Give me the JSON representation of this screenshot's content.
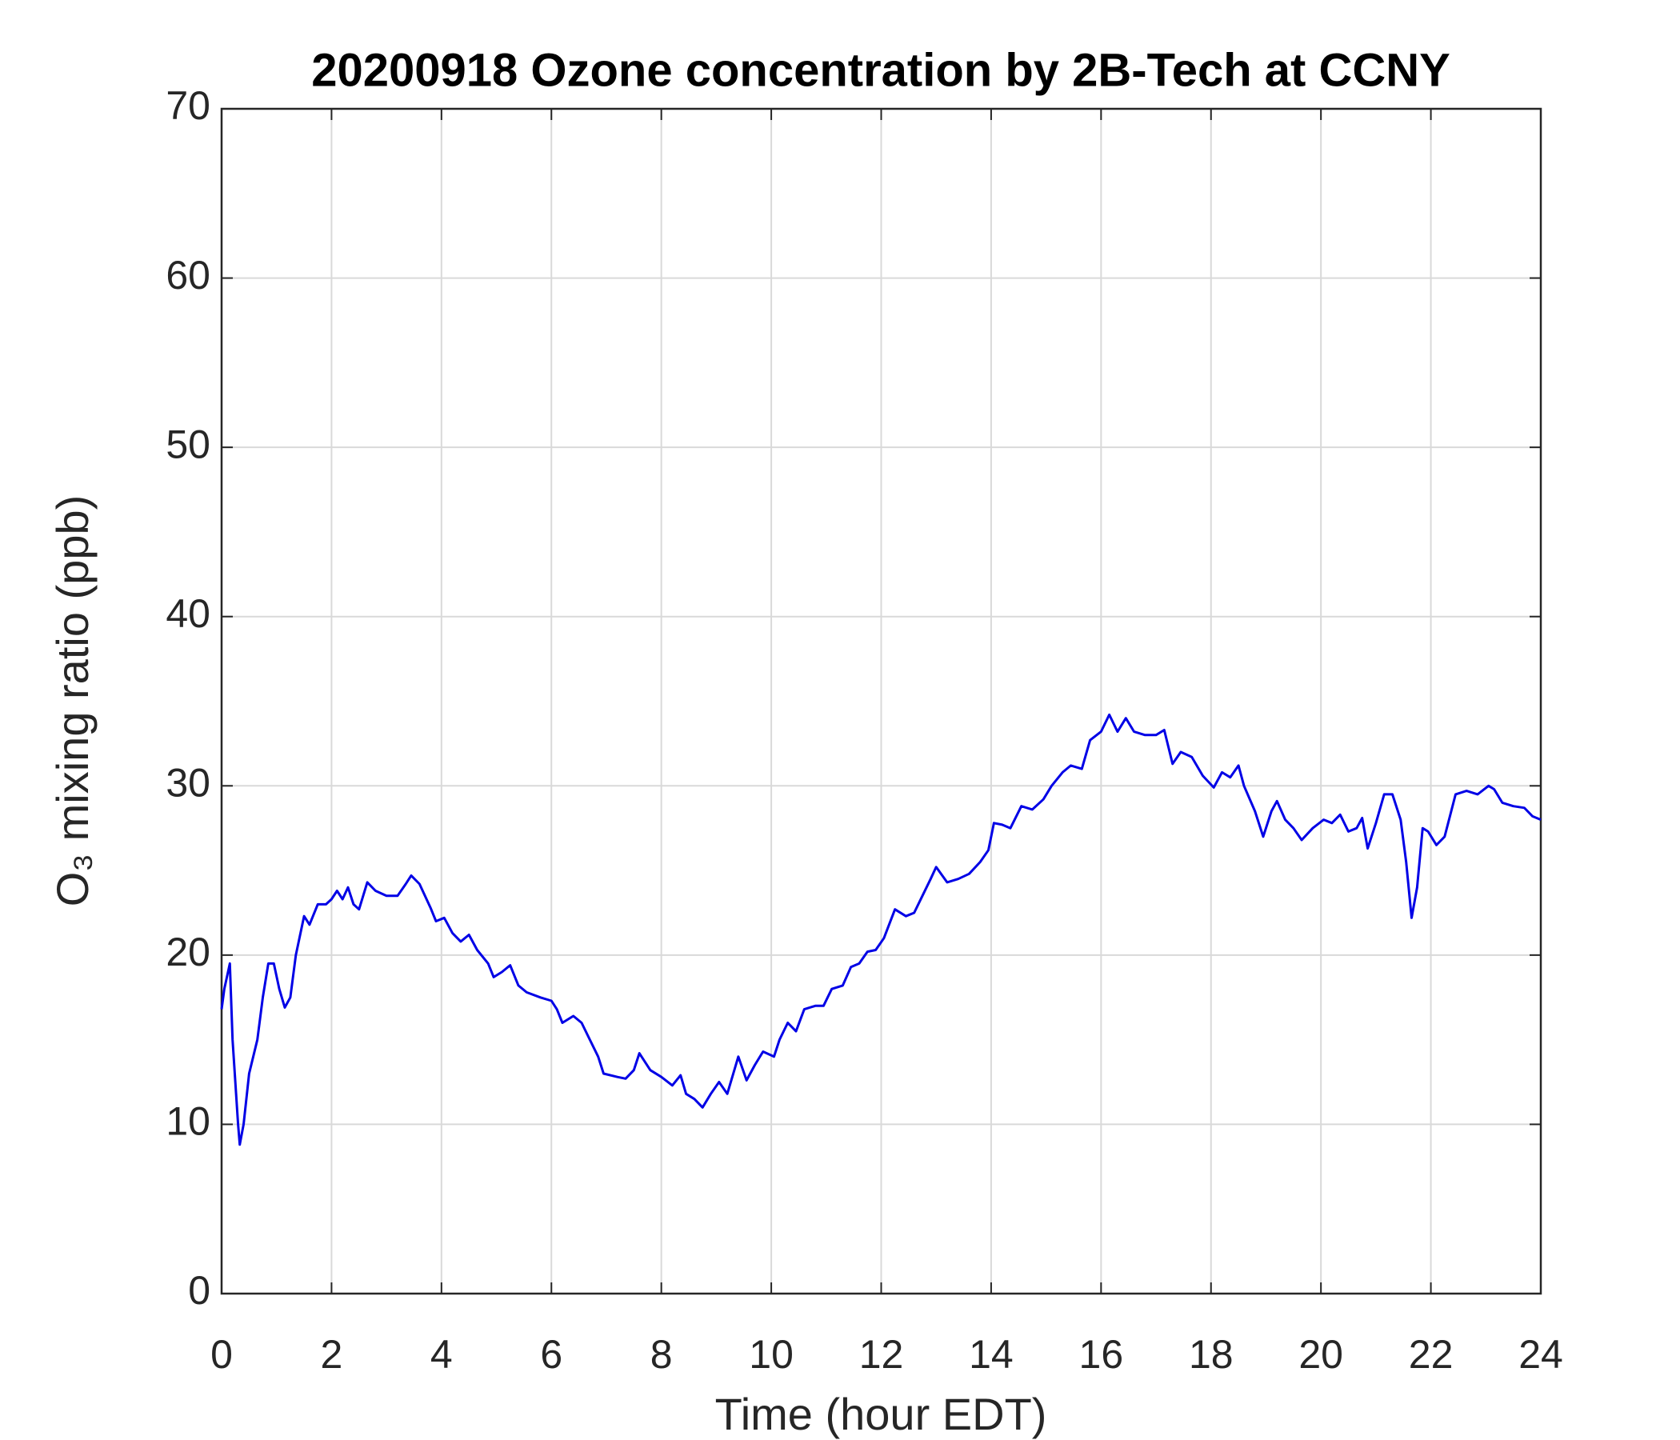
{
  "chart_data": {
    "type": "line",
    "title": "20200918 Ozone concentration by 2B-Tech at CCNY",
    "xlabel": "Time (hour EDT)",
    "ylabel": "O₃ mixing ratio (ppb)",
    "xlim": [
      0,
      24
    ],
    "xticks": [
      0,
      2,
      4,
      6,
      8,
      10,
      12,
      14,
      16,
      18,
      20,
      22,
      24
    ],
    "ylim": [
      0,
      70
    ],
    "yticks": [
      0,
      10,
      20,
      30,
      40,
      50,
      60,
      70
    ],
    "grid": true,
    "series": [
      {
        "color": "#0000e6",
        "x": [
          0,
          0.05,
          0.15,
          0.2,
          0.3,
          0.33,
          0.4,
          0.5,
          0.65,
          0.75,
          0.85,
          0.95,
          1.05,
          1.15,
          1.25,
          1.35,
          1.5,
          1.6,
          1.75,
          1.9,
          2.0,
          2.1,
          2.2,
          2.3,
          2.4,
          2.5,
          2.65,
          2.8,
          3.0,
          3.2,
          3.35,
          3.45,
          3.6,
          3.8,
          3.9,
          4.05,
          4.2,
          4.35,
          4.5,
          4.65,
          4.85,
          4.95,
          5.1,
          5.25,
          5.4,
          5.55,
          5.8,
          6.0,
          6.1,
          6.2,
          6.4,
          6.55,
          6.7,
          6.85,
          6.95,
          7.2,
          7.35,
          7.5,
          7.6,
          7.8,
          8.0,
          8.2,
          8.35,
          8.45,
          8.6,
          8.75,
          8.9,
          9.05,
          9.2,
          9.4,
          9.55,
          9.7,
          9.85,
          10.05,
          10.15,
          10.3,
          10.45,
          10.6,
          10.8,
          10.95,
          11.1,
          11.3,
          11.45,
          11.6,
          11.75,
          11.9,
          12.05,
          12.25,
          12.45,
          12.6,
          12.75,
          12.9,
          13.0,
          13.2,
          13.4,
          13.6,
          13.8,
          13.95,
          14.05,
          14.2,
          14.35,
          14.55,
          14.75,
          14.95,
          15.1,
          15.3,
          15.45,
          15.65,
          15.8,
          16.0,
          16.15,
          16.3,
          16.45,
          16.6,
          16.8,
          17.0,
          17.15,
          17.3,
          17.45,
          17.65,
          17.85,
          18.05,
          18.2,
          18.35,
          18.5,
          18.6,
          18.8,
          18.95,
          19.1,
          19.2,
          19.35,
          19.5,
          19.65,
          19.85,
          20.05,
          20.2,
          20.35,
          20.5,
          20.65,
          20.75,
          20.85,
          21.0,
          21.15,
          21.3,
          21.45,
          21.55,
          21.65,
          21.75,
          21.85,
          21.95,
          22.1,
          22.25,
          22.45,
          22.65,
          22.85,
          23.05,
          23.15,
          23.3,
          23.5,
          23.7,
          23.85,
          24.0
        ],
        "values": [
          16.8,
          18,
          19.5,
          15,
          10,
          8.8,
          10,
          13,
          15,
          17.5,
          19.5,
          19.5,
          18,
          16.9,
          17.5,
          20,
          22.3,
          21.8,
          23,
          23,
          23.3,
          23.8,
          23.3,
          24,
          23,
          22.7,
          24.3,
          23.8,
          23.5,
          23.5,
          24.2,
          24.7,
          24.2,
          22.8,
          22,
          22.2,
          21.3,
          20.8,
          21.2,
          20.3,
          19.5,
          18.7,
          19,
          19.4,
          18.2,
          17.8,
          17.5,
          17.3,
          16.8,
          16,
          16.4,
          16,
          15,
          14,
          13,
          12.8,
          12.7,
          13.2,
          14.2,
          13.2,
          12.8,
          12.3,
          12.9,
          11.8,
          11.5,
          11,
          11.8,
          12.5,
          11.8,
          14,
          12.6,
          13.5,
          14.3,
          14,
          15,
          16,
          15.5,
          16.8,
          17,
          17,
          18,
          18.2,
          19.3,
          19.5,
          20.2,
          20.3,
          21,
          22.7,
          22.3,
          22.5,
          23.5,
          24.5,
          25.2,
          24.3,
          24.5,
          24.8,
          25.5,
          26.2,
          27.8,
          27.7,
          27.5,
          28.8,
          28.6,
          29.2,
          30,
          30.8,
          31.2,
          31,
          32.7,
          33.2,
          34.2,
          33.2,
          34,
          33.2,
          33,
          33,
          33.3,
          31.3,
          32,
          31.7,
          30.6,
          29.9,
          30.8,
          30.5,
          31.2,
          30,
          28.5,
          27,
          28.5,
          29.1,
          28,
          27.5,
          26.8,
          27.5,
          28,
          27.8,
          28.3,
          27.3,
          27.5,
          28.1,
          26.3,
          27.8,
          29.5,
          29.5,
          28,
          25.5,
          22.2,
          24,
          27.5,
          27.3,
          26.5,
          27,
          29.5,
          29.7,
          29.5,
          30,
          29.8,
          29,
          28.8,
          28.7,
          28.2,
          28
        ]
      }
    ]
  }
}
